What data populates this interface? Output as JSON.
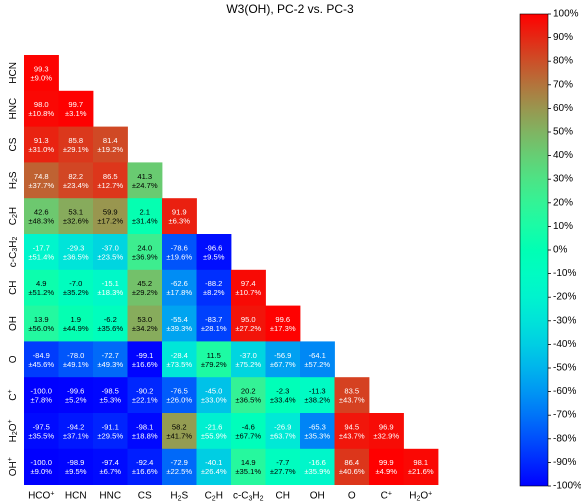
{
  "chart_data": {
    "type": "heatmap",
    "title": "W3(OH), PC-2 vs. PC-3",
    "row_labels": [
      [
        "HCN"
      ],
      [
        "HNC"
      ],
      [
        "CS"
      ],
      [
        {
          "t": "H"
        },
        {
          "t": "2",
          "sub": true
        },
        {
          "t": "S"
        }
      ],
      [
        {
          "t": "C"
        },
        {
          "t": "2",
          "sub": true
        },
        {
          "t": "H"
        }
      ],
      [
        {
          "t": "c-C"
        },
        {
          "t": "3",
          "sub": true
        },
        {
          "t": "H"
        },
        {
          "t": "2",
          "sub": true
        }
      ],
      [
        "CH"
      ],
      [
        "OH"
      ],
      [
        "O"
      ],
      [
        {
          "t": "C"
        },
        {
          "t": "+",
          "sup": true
        }
      ],
      [
        {
          "t": "H"
        },
        {
          "t": "2",
          "sub": true
        },
        {
          "t": "O"
        },
        {
          "t": "+",
          "sup": true
        }
      ],
      [
        {
          "t": "OH"
        },
        {
          "t": "+",
          "sup": true
        }
      ]
    ],
    "col_labels": [
      [
        {
          "t": "HCO"
        },
        {
          "t": "+",
          "sup": true
        }
      ],
      [
        "HCN"
      ],
      [
        "HNC"
      ],
      [
        "CS"
      ],
      [
        {
          "t": "H"
        },
        {
          "t": "2",
          "sub": true
        },
        {
          "t": "S"
        }
      ],
      [
        {
          "t": "C"
        },
        {
          "t": "2",
          "sub": true
        },
        {
          "t": "H"
        }
      ],
      [
        {
          "t": "c-C"
        },
        {
          "t": "3",
          "sub": true
        },
        {
          "t": "H"
        },
        {
          "t": "2",
          "sub": true
        }
      ],
      [
        "CH"
      ],
      [
        "OH"
      ],
      [
        "O"
      ],
      [
        {
          "t": "C"
        },
        {
          "t": "+",
          "sup": true
        }
      ],
      [
        {
          "t": "H"
        },
        {
          "t": "2",
          "sub": true
        },
        {
          "t": "O"
        },
        {
          "t": "+",
          "sup": true
        }
      ]
    ],
    "values": [
      [
        99.3
      ],
      [
        98.0,
        99.7
      ],
      [
        91.3,
        85.8,
        81.4
      ],
      [
        74.8,
        82.2,
        86.5,
        41.3
      ],
      [
        42.6,
        53.1,
        59.9,
        2.1,
        91.9
      ],
      [
        -17.7,
        -29.3,
        -37.0,
        24.0,
        -78.6,
        -96.6
      ],
      [
        4.9,
        -7.0,
        -15.1,
        45.2,
        -62.6,
        -88.2,
        97.4
      ],
      [
        13.9,
        1.9,
        -6.2,
        53.0,
        -55.4,
        -83.7,
        95.0,
        99.6
      ],
      [
        -84.9,
        -78.0,
        -72.7,
        -99.1,
        -28.4,
        11.5,
        -37.0,
        -56.9,
        -64.1
      ],
      [
        -100.0,
        -99.6,
        -98.5,
        -90.2,
        -76.5,
        -45.0,
        20.2,
        -2.3,
        -11.3,
        83.5
      ],
      [
        -97.5,
        -94.2,
        -91.1,
        -98.1,
        58.2,
        -21.6,
        -4.6,
        -26.9,
        -65.3,
        94.5,
        96.9
      ],
      [
        -100.0,
        -98.9,
        -97.4,
        -92.4,
        -72.9,
        -40.1,
        14.9,
        -7.7,
        -16.6,
        86.4,
        99.9,
        98.1
      ]
    ],
    "errors": [
      [
        "±9.0%"
      ],
      [
        "±10.8%",
        "±3.1%"
      ],
      [
        "±31.0%",
        "±29.1%",
        "±19.2%"
      ],
      [
        "±37.7%",
        "±23.4%",
        "±12.7%",
        "±24.7%"
      ],
      [
        "±48.3%",
        "±32.6%",
        "±17.2%",
        "±31.4%",
        "±6.3%"
      ],
      [
        "±51.4%",
        "±36.5%",
        "±23.5%",
        "±36.9%",
        "±19.6%",
        "±9.5%"
      ],
      [
        "±51.2%",
        "±35.2%",
        "±18.3%",
        "±29.2%",
        "±17.8%",
        "±8.2%",
        "±10.7%"
      ],
      [
        "±56.0%",
        "±44.9%",
        "±35.6%",
        "±34.2%",
        "±39.3%",
        "±28.1%",
        "±27.2%",
        "±17.3%"
      ],
      [
        "±45.6%",
        "±49.1%",
        "±49.3%",
        "±16.6%",
        "±73.5%",
        "±79.2%",
        "±75.2%",
        "±67.7%",
        "±57.2%"
      ],
      [
        "±7.8%",
        "±5.2%",
        "±5.3%",
        "±22.1%",
        "±26.0%",
        "±33.0%",
        "±36.5%",
        "±33.4%",
        "±38.2%",
        "±43.7%"
      ],
      [
        "±35.5%",
        "±37.1%",
        "±29.5%",
        "±18.8%",
        "±41.7%",
        "±55.9%",
        "±67.7%",
        "±63.7%",
        "±35.3%",
        "±43.7%",
        "±32.9%"
      ],
      [
        "±9.0%",
        "±9.5%",
        "±6.7%",
        "±16.6%",
        "±22.5%",
        "±26.4%",
        "±35.1%",
        "±27.7%",
        "±35.9%",
        "±40.6%",
        "±4.9%",
        "±21.6%"
      ]
    ],
    "colorbar": {
      "range": [
        -100,
        100
      ],
      "ticks": [
        "100%",
        "90%",
        "80%",
        "70%",
        "60%",
        "50%",
        "40%",
        "30%",
        "20%",
        "10%",
        "0%",
        "-10%",
        "-20%",
        "-30%",
        "-40%",
        "-50%",
        "-60%",
        "-70%",
        "-80%",
        "-90%",
        "-100%"
      ],
      "colormap": "rainbow"
    },
    "grid": false
  }
}
